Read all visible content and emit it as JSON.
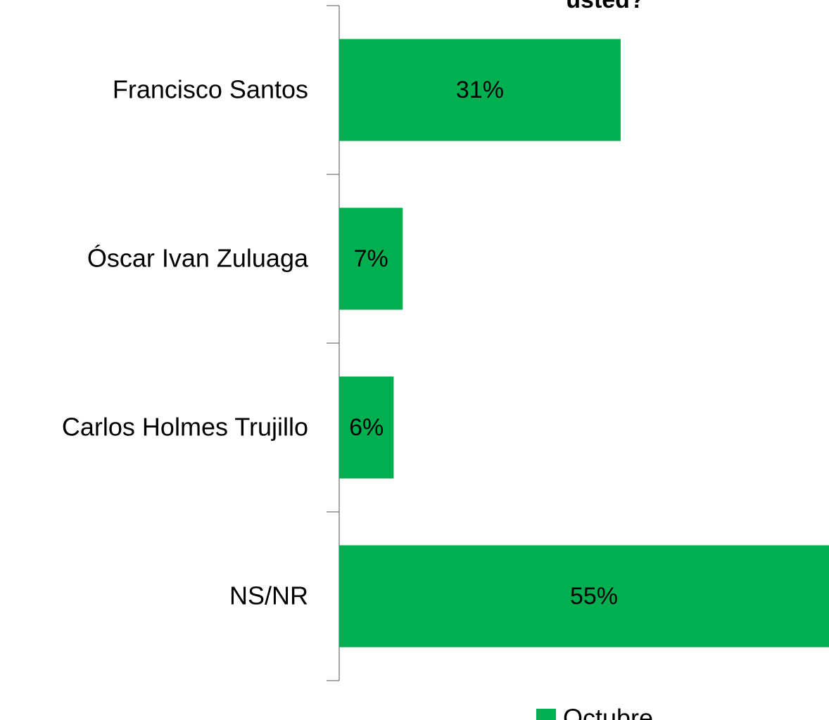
{
  "chart_data": {
    "type": "bar",
    "orientation": "horizontal",
    "title": "usted?",
    "categories": [
      "Francisco Santos",
      "Óscar Ivan Zuluaga",
      "Carlos Holmes Trujillo",
      "NS/NR"
    ],
    "series": [
      {
        "name": "Octubre",
        "color": "#00b050",
        "values": [
          31,
          7,
          6,
          55
        ],
        "value_labels": [
          "31%",
          "7%",
          "6%",
          "55%"
        ]
      }
    ],
    "legend": "bottom"
  }
}
